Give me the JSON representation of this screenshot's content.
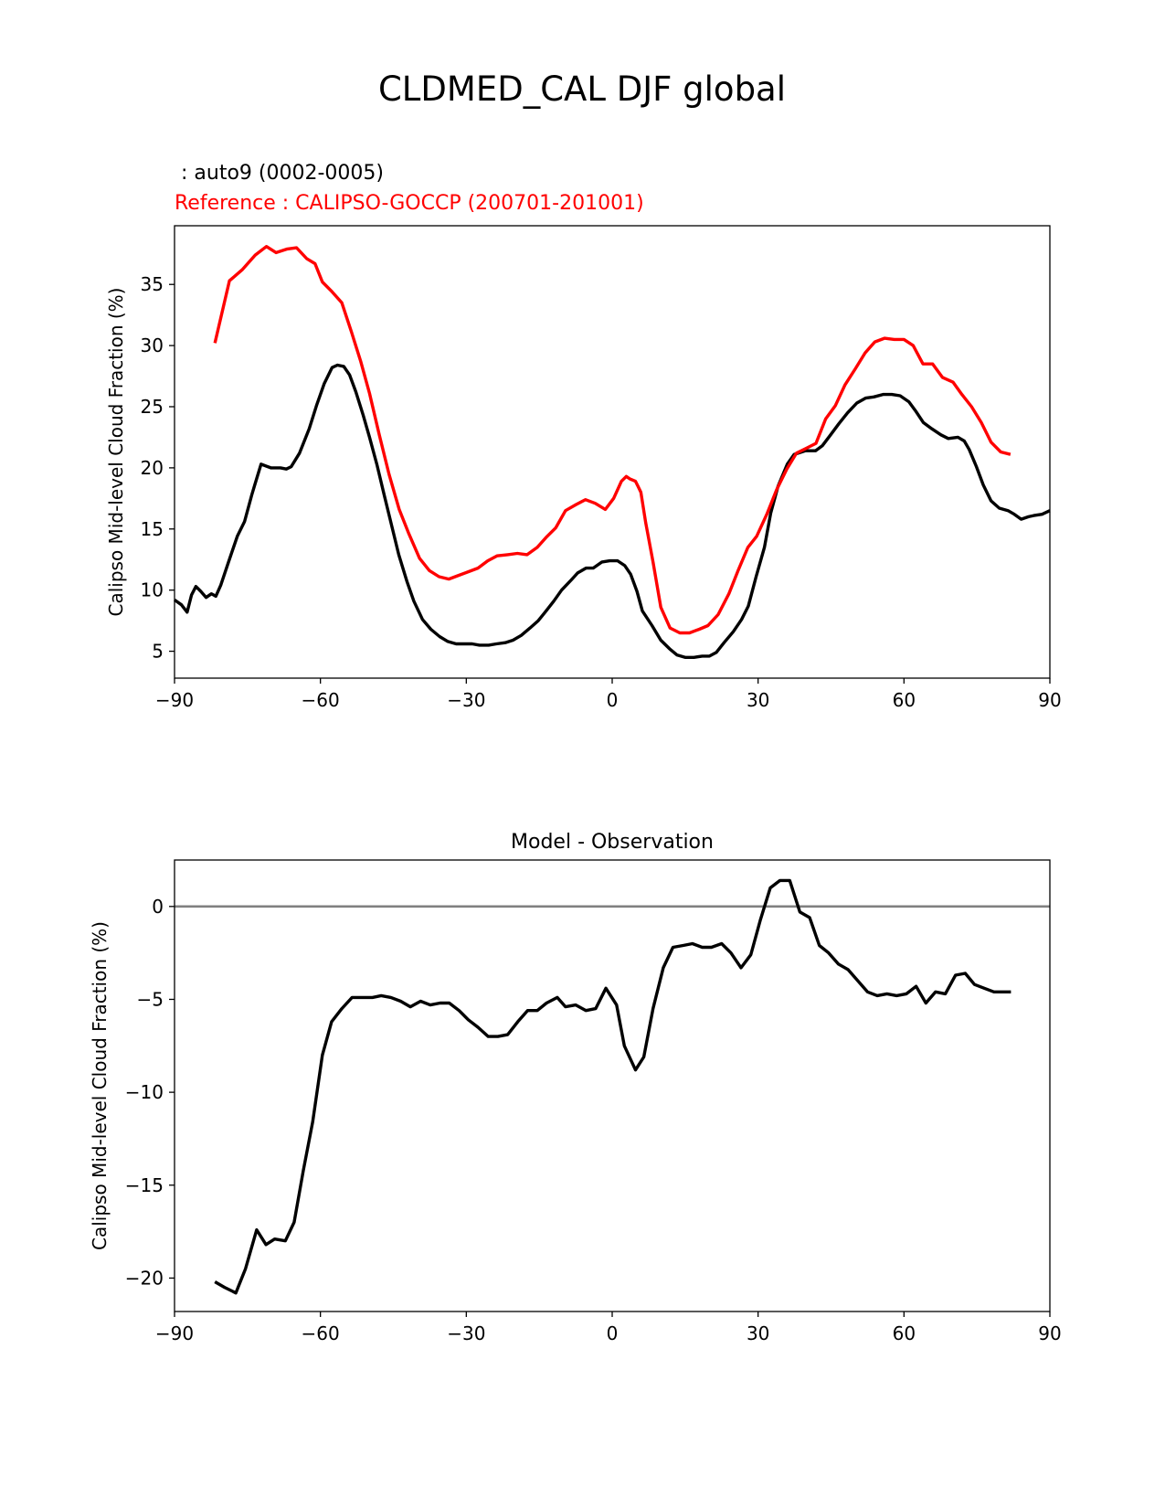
{
  "figure": {
    "suptitle": "CLDMED_CAL DJF global",
    "model_label": " : auto9 (0002-0005)",
    "reference_label": "Reference : CALIPSO-GOCCP (200701-201001)",
    "colors": {
      "model": "#000000",
      "reference": "#ff0000",
      "zero_line": "#808080"
    }
  },
  "chart_data": [
    {
      "type": "line",
      "title": "",
      "xlabel": "",
      "ylabel": "Calipso Mid-level Cloud Fraction (%)",
      "xlim": [
        -90,
        90
      ],
      "ylim": [
        2.8,
        39.8
      ],
      "xticks": [
        -90,
        -60,
        -30,
        0,
        30,
        60,
        90
      ],
      "xtick_labels": [
        "−90",
        "−60",
        "−30",
        "0",
        "30",
        "60",
        "90"
      ],
      "yticks": [
        5,
        10,
        15,
        20,
        25,
        30,
        35
      ],
      "ytick_labels": [
        "5",
        "10",
        "15",
        "20",
        "25",
        "30",
        "35"
      ],
      "series": [
        {
          "name": "auto9 (0002-0005)",
          "color": "#000000",
          "x": [
            -90,
            -88.6,
            -87.4,
            -86.5,
            -85.6,
            -84.6,
            -83.5,
            -82.4,
            -81.5,
            -80.5,
            -78.9,
            -77.1,
            -75.6,
            -74.1,
            -73.5,
            -72.2,
            -70.2,
            -68.2,
            -67,
            -66,
            -64.3,
            -62.3,
            -60.8,
            -59.2,
            -57.6,
            -56.5,
            -55.2,
            -54,
            -52.7,
            -51.2,
            -49.9,
            -48.4,
            -46.9,
            -45.3,
            -43.9,
            -42.2,
            -40.8,
            -39,
            -37.3,
            -35.5,
            -33.8,
            -32.1,
            -30.6,
            -28.8,
            -27.3,
            -25.4,
            -23.8,
            -22,
            -20.4,
            -18.7,
            -16.9,
            -15.2,
            -13.8,
            -12,
            -10.4,
            -8.5,
            -7.1,
            -5.4,
            -3.9,
            -2.1,
            -0.5,
            1.1,
            2.6,
            3.8,
            5.1,
            6.2,
            8.2,
            10,
            11.8,
            13.3,
            15,
            16.8,
            18.5,
            20,
            21.4,
            23,
            24.9,
            26.6,
            28,
            29.6,
            31.3,
            32.6,
            34.1,
            36,
            37.4,
            39.7,
            41.8,
            43.2,
            44.9,
            46.6,
            48.4,
            50.3,
            52.1,
            53.8,
            55.7,
            57.5,
            59.2,
            61,
            62.5,
            64,
            65.7,
            67.6,
            69.1,
            71.1,
            72.4,
            73.4,
            74.9,
            76.3,
            77.9,
            79.6,
            81.4,
            82.7,
            84.1,
            85.6,
            86.7,
            88.4,
            90
          ],
          "y": [
            9.2,
            8.8,
            8.2,
            9.6,
            10.3,
            9.9,
            9.4,
            9.7,
            9.5,
            10.4,
            12.3,
            14.4,
            15.6,
            17.8,
            18.6,
            20.3,
            20,
            20,
            19.9,
            20.1,
            21.2,
            23.2,
            25.1,
            26.9,
            28.2,
            28.4,
            28.3,
            27.6,
            26.2,
            24.3,
            22.5,
            20.3,
            17.8,
            15.2,
            12.9,
            10.7,
            9.1,
            7.6,
            6.8,
            6.2,
            5.8,
            5.6,
            5.6,
            5.6,
            5.5,
            5.5,
            5.6,
            5.7,
            5.9,
            6.3,
            6.9,
            7.5,
            8.2,
            9.1,
            10,
            10.8,
            11.4,
            11.8,
            11.8,
            12.3,
            12.4,
            12.4,
            12,
            11.3,
            9.9,
            8.3,
            7.1,
            5.9,
            5.2,
            4.7,
            4.5,
            4.5,
            4.6,
            4.6,
            4.9,
            5.7,
            6.6,
            7.6,
            8.7,
            11.1,
            13.5,
            16.3,
            18.5,
            20.3,
            21.1,
            21.4,
            21.4,
            21.8,
            22.7,
            23.6,
            24.5,
            25.3,
            25.7,
            25.8,
            26,
            26,
            25.9,
            25.4,
            24.6,
            23.7,
            23.2,
            22.7,
            22.4,
            22.5,
            22.2,
            21.5,
            20.1,
            18.6,
            17.3,
            16.7,
            16.5,
            16.2,
            15.8,
            16,
            16.1,
            16.2,
            16.5
          ]
        },
        {
          "name": "CALIPSO-GOCCP (200701-201001)",
          "color": "#ff0000",
          "x": [
            -81.7,
            -78.7,
            -76.1,
            -73.4,
            -71.1,
            -69.1,
            -66.8,
            -64.9,
            -62.8,
            -61.1,
            -59.6,
            -57.6,
            -55.6,
            -53.6,
            -51.7,
            -49.9,
            -47.9,
            -45.9,
            -43.8,
            -41.8,
            -39.6,
            -37.6,
            -35.6,
            -33.6,
            -31.6,
            -29.6,
            -27.6,
            -25.6,
            -23.7,
            -21.5,
            -19.5,
            -17.5,
            -15.4,
            -13.6,
            -11.6,
            -9.6,
            -7.4,
            -5.5,
            -3.5,
            -1.4,
            0.3,
            1.9,
            2.9,
            3.6,
            4.8,
            5.3,
            5.9,
            6.9,
            8.4,
            10,
            11.9,
            13.9,
            15.9,
            17.9,
            19.7,
            21.8,
            24,
            25.9,
            27.9,
            29.7,
            31.8,
            33.8,
            35.9,
            37.9,
            39.9,
            41.9,
            43.9,
            45.9,
            47.9,
            50,
            52,
            54,
            56,
            58,
            60,
            61.9,
            63.9,
            65.9,
            67.9,
            70.1,
            71.9,
            73.9,
            75.9,
            77.9,
            79.9,
            81.9
          ],
          "y": [
            30.2,
            35.3,
            36.2,
            37.4,
            38.1,
            37.6,
            37.9,
            38,
            37.1,
            36.7,
            35.2,
            34.4,
            33.5,
            31.1,
            28.7,
            26.1,
            22.7,
            19.5,
            16.6,
            14.6,
            12.6,
            11.6,
            11.1,
            10.9,
            11.2,
            11.5,
            11.8,
            12.4,
            12.8,
            12.9,
            13,
            12.9,
            13.5,
            14.3,
            15.1,
            16.5,
            17,
            17.4,
            17.1,
            16.6,
            17.5,
            18.9,
            19.3,
            19.1,
            18.9,
            18.5,
            18,
            15.5,
            12.3,
            8.6,
            6.9,
            6.5,
            6.5,
            6.8,
            7.1,
            8,
            9.7,
            11.6,
            13.5,
            14.4,
            16.2,
            18.2,
            19.9,
            21.2,
            21.6,
            22,
            24,
            25.1,
            26.8,
            28.1,
            29.4,
            30.3,
            30.6,
            30.5,
            30.5,
            30,
            28.5,
            28.5,
            27.4,
            27,
            26,
            25,
            23.7,
            22.1,
            21.3,
            21.1
          ]
        }
      ]
    },
    {
      "type": "line",
      "title": "Model - Observation",
      "xlabel": "",
      "ylabel": "Calipso Mid-level Cloud Fraction (%)",
      "xlim": [
        -90,
        90
      ],
      "ylim": [
        -21.8,
        2.5
      ],
      "xticks": [
        -90,
        -60,
        -30,
        0,
        30,
        60,
        90
      ],
      "xtick_labels": [
        "−90",
        "−60",
        "−30",
        "0",
        "30",
        "60",
        "90"
      ],
      "yticks": [
        -20,
        -15,
        -10,
        -5,
        0
      ],
      "ytick_labels": [
        "−20",
        "−15",
        "−10",
        "−5",
        "0"
      ],
      "reference_line": 0,
      "series": [
        {
          "name": "Model - Observation",
          "color": "#000000",
          "x": [
            -81.7,
            -79.7,
            -77.4,
            -75.4,
            -73.1,
            -71.2,
            -69.4,
            -67.2,
            -65.4,
            -63.5,
            -61.6,
            -59.6,
            -57.7,
            -55.6,
            -53.5,
            -51.5,
            -49.3,
            -47.5,
            -45.5,
            -43.5,
            -41.5,
            -39.4,
            -37.4,
            -35.4,
            -33.5,
            -31.5,
            -29.6,
            -27.6,
            -25.5,
            -23.5,
            -21.5,
            -19.4,
            -17.4,
            -15.4,
            -13.5,
            -11.3,
            -9.6,
            -7.5,
            -5.4,
            -3.4,
            -1.3,
            0.9,
            2.5,
            4.8,
            6.5,
            8.4,
            10.5,
            12.5,
            14.6,
            16.5,
            18.5,
            20.4,
            22.5,
            24.4,
            26.5,
            28.5,
            30.5,
            32.5,
            34.5,
            36.5,
            38.6,
            40.6,
            42.6,
            44.5,
            46.5,
            48.5,
            50.5,
            52.5,
            54.5,
            56.5,
            58.5,
            60.5,
            62.5,
            64.5,
            66.5,
            68.5,
            70.6,
            72.6,
            74.5,
            76.5,
            78.5,
            80.6,
            82
          ],
          "y": [
            -20.2,
            -20.5,
            -20.8,
            -19.5,
            -17.4,
            -18.2,
            -17.9,
            -18,
            -17,
            -14.2,
            -11.6,
            -8,
            -6.2,
            -5.5,
            -4.9,
            -4.9,
            -4.9,
            -4.8,
            -4.9,
            -5.1,
            -5.4,
            -5.1,
            -5.3,
            -5.2,
            -5.2,
            -5.6,
            -6.1,
            -6.5,
            -7,
            -7,
            -6.9,
            -6.2,
            -5.6,
            -5.6,
            -5.2,
            -4.9,
            -5.4,
            -5.3,
            -5.6,
            -5.5,
            -4.4,
            -5.3,
            -7.5,
            -8.8,
            -8.1,
            -5.5,
            -3.3,
            -2.2,
            -2.1,
            -2,
            -2.2,
            -2.2,
            -2,
            -2.5,
            -3.3,
            -2.6,
            -0.7,
            1,
            1.4,
            1.4,
            -0.3,
            -0.6,
            -2.1,
            -2.5,
            -3.1,
            -3.4,
            -4,
            -4.6,
            -4.8,
            -4.7,
            -4.8,
            -4.7,
            -4.3,
            -5.2,
            -4.6,
            -4.7,
            -3.7,
            -3.6,
            -4.2,
            -4.4,
            -4.6,
            -4.6,
            -4.6
          ]
        }
      ]
    }
  ]
}
